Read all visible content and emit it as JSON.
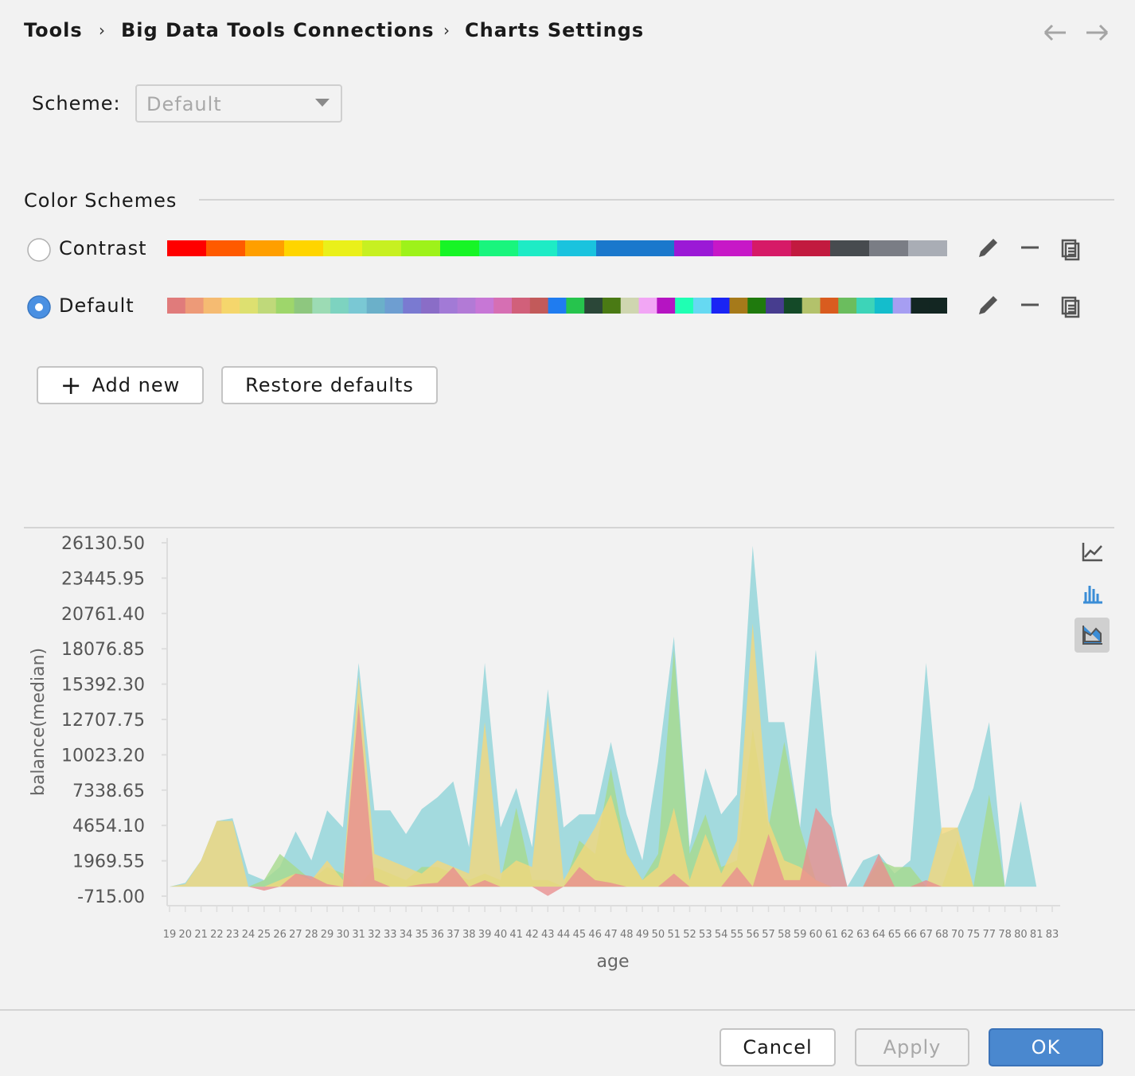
{
  "breadcrumb": [
    "Tools",
    "Big Data Tools Connections",
    "Charts Settings"
  ],
  "scheme": {
    "label": "Scheme:",
    "value": "Default"
  },
  "color_schemes": {
    "title": "Color Schemes",
    "items": [
      {
        "name": "Contrast",
        "selected": false,
        "colors": [
          "#ff0000",
          "#ff5a00",
          "#ff9f00",
          "#ffd500",
          "#eaf01a",
          "#c7f021",
          "#9ef21a",
          "#17f526",
          "#19f57d",
          "#1eebc5",
          "#1ac3de",
          "#1a78cc",
          "#1a78cc",
          "#9b19d6",
          "#c718c7",
          "#d61a67",
          "#c21a3f",
          "#474b4f",
          "#7a7d85",
          "#a9adb5"
        ]
      },
      {
        "name": "Default",
        "selected": true,
        "colors": [
          "#e07b7b",
          "#ed9a78",
          "#f5bb72",
          "#f5d66c",
          "#dde070",
          "#bfd97a",
          "#9ed66b",
          "#8ec77f",
          "#9cdbb4",
          "#7dd3c0",
          "#7ac8d4",
          "#6bb0c9",
          "#6e9ed1",
          "#7a7ad1",
          "#8a6dc7",
          "#a27ad6",
          "#b27ad6",
          "#c777d6",
          "#d66fb3",
          "#d1607a",
          "#c25a5a",
          "#1f7cf0",
          "#26c44d",
          "#2b4738",
          "#4a7a14",
          "#cfd6b0",
          "#f2a6f5",
          "#b514c2",
          "#1fffb3",
          "#66d9f2",
          "#1a24f5",
          "#a67a1a",
          "#1f7a0d",
          "#473d8f",
          "#144a28",
          "#b3c26b",
          "#d95c1f",
          "#6bbd5e",
          "#3dd4b8",
          "#14bdcc",
          "#a69ef2",
          "#132622",
          "#132622"
        ]
      }
    ]
  },
  "buttons": {
    "add_new": "Add new",
    "restore": "Restore defaults"
  },
  "footer": {
    "cancel": "Cancel",
    "apply": "Apply",
    "ok": "OK"
  },
  "chart_data": {
    "type": "area",
    "x_label": "age",
    "y_label": "balance(median)",
    "categories": [
      "19",
      "20",
      "21",
      "22",
      "23",
      "24",
      "25",
      "26",
      "27",
      "28",
      "29",
      "30",
      "31",
      "32",
      "33",
      "34",
      "35",
      "36",
      "37",
      "38",
      "39",
      "40",
      "41",
      "42",
      "43",
      "44",
      "45",
      "46",
      "47",
      "48",
      "49",
      "50",
      "51",
      "52",
      "53",
      "54",
      "55",
      "56",
      "57",
      "58",
      "59",
      "60",
      "61",
      "62",
      "63",
      "64",
      "65",
      "66",
      "67",
      "68",
      "70",
      "75",
      "77",
      "78",
      "80",
      "81",
      "83"
    ],
    "ylim": [
      -715,
      26130.5
    ],
    "yticks": [
      {
        "value": -715,
        "label": "-715.00"
      },
      1969.55,
      {
        "value": 4654.1,
        "label": "4654.10"
      },
      7338.65,
      {
        "value": 10023.2,
        "label": "10023.20"
      },
      12707.75,
      {
        "value": 15392.3,
        "label": "15392.30"
      },
      18076.85,
      {
        "value": 20761.4,
        "label": "20761.40"
      },
      23445.95,
      {
        "value": 26130.5,
        "label": "26130.50"
      }
    ],
    "series": [
      {
        "color": "#8fd3d8",
        "values": [
          0,
          300,
          2000,
          5000,
          5200,
          1000,
          500,
          1500,
          4200,
          2000,
          5800,
          4500,
          17000,
          5800,
          5800,
          4000,
          5900,
          6800,
          8000,
          3000,
          17000,
          4500,
          7500,
          3000,
          15000,
          4500,
          5500,
          5500,
          11000,
          5500,
          2000,
          9500,
          19000,
          3000,
          9000,
          5500,
          7000,
          25900,
          12500,
          12500,
          4500,
          18000,
          5500,
          0,
          2000,
          2500,
          1000,
          2000,
          17000,
          4000,
          4500,
          7500,
          12500,
          0,
          6500,
          0,
          0
        ]
      },
      {
        "color": "#a6d98c",
        "values": [
          0,
          0,
          0,
          0,
          0,
          0,
          500,
          2500,
          1500,
          500,
          1500,
          1000,
          0,
          1500,
          1000,
          500,
          1500,
          1500,
          1000,
          500,
          1000,
          500,
          6000,
          500,
          500,
          0,
          3500,
          2500,
          9000,
          2500,
          500,
          2500,
          18000,
          2500,
          5500,
          1500,
          2000,
          12000,
          4500,
          11000,
          4500,
          500,
          0,
          0,
          0,
          2000,
          1500,
          1500,
          0,
          0,
          3500,
          0,
          7000,
          0,
          0,
          0,
          0
        ]
      },
      {
        "color": "#f2d77c",
        "values": [
          0,
          200,
          2000,
          5000,
          5000,
          0,
          0,
          500,
          1000,
          500,
          2000,
          500,
          16000,
          2500,
          2000,
          1500,
          1000,
          2000,
          1500,
          1000,
          12500,
          1000,
          2000,
          1500,
          13000,
          500,
          2500,
          4500,
          7000,
          2500,
          500,
          1500,
          6000,
          500,
          4000,
          1000,
          3500,
          20000,
          5000,
          2000,
          1500,
          500,
          0,
          0,
          0,
          0,
          0,
          0,
          0,
          4500,
          4500,
          0,
          0,
          0,
          0,
          0,
          0
        ]
      },
      {
        "color": "#e99090",
        "values": [
          0,
          0,
          0,
          0,
          0,
          0,
          -300,
          0,
          1000,
          800,
          200,
          0,
          14000,
          500,
          0,
          0,
          200,
          300,
          1500,
          0,
          500,
          0,
          0,
          0,
          -700,
          0,
          1500,
          500,
          300,
          0,
          0,
          0,
          1000,
          0,
          0,
          0,
          1500,
          0,
          4000,
          500,
          500,
          6000,
          4500,
          0,
          0,
          2500,
          0,
          0,
          500,
          0,
          0,
          0,
          0,
          0,
          0,
          0,
          0
        ]
      }
    ]
  }
}
